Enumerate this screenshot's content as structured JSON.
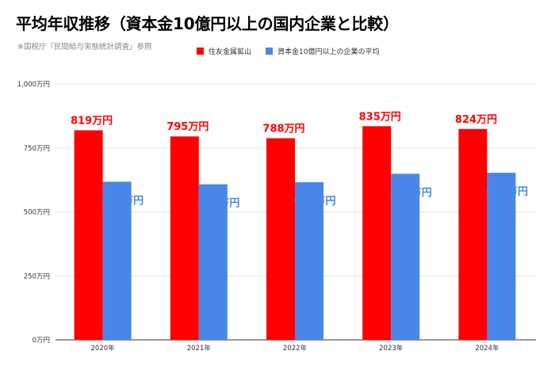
{
  "title": "平均年収推移（資本金10億円以上の国内企業と比較）",
  "source": "※国税庁『民間給与実態統計調査』参照",
  "colors": {
    "series1": "#ff0000",
    "series2": "#4a86e8"
  },
  "chart_data": {
    "type": "bar",
    "categories": [
      "2020年",
      "2021年",
      "2022年",
      "2023年",
      "2024年"
    ],
    "series": [
      {
        "name": "住友金属鉱山",
        "values": [
          819,
          795,
          788,
          835,
          824
        ],
        "labels": [
          "819万円",
          "795万円",
          "788万円",
          "835万円",
          "824万円"
        ]
      },
      {
        "name": "資本金10億円以上の企業の平均",
        "values": [
          618,
          608,
          616,
          649,
          653
        ],
        "labels": [
          "618万円",
          "608万円",
          "616万円",
          "649万円",
          "653万円"
        ]
      }
    ],
    "ylim": [
      0,
      1000
    ],
    "yticks": [
      0,
      250,
      500,
      750,
      1000
    ],
    "ytick_labels": [
      "0万円",
      "250万円",
      "500万円",
      "750万円",
      "1,000万円"
    ],
    "grid": true,
    "legend": "top"
  }
}
